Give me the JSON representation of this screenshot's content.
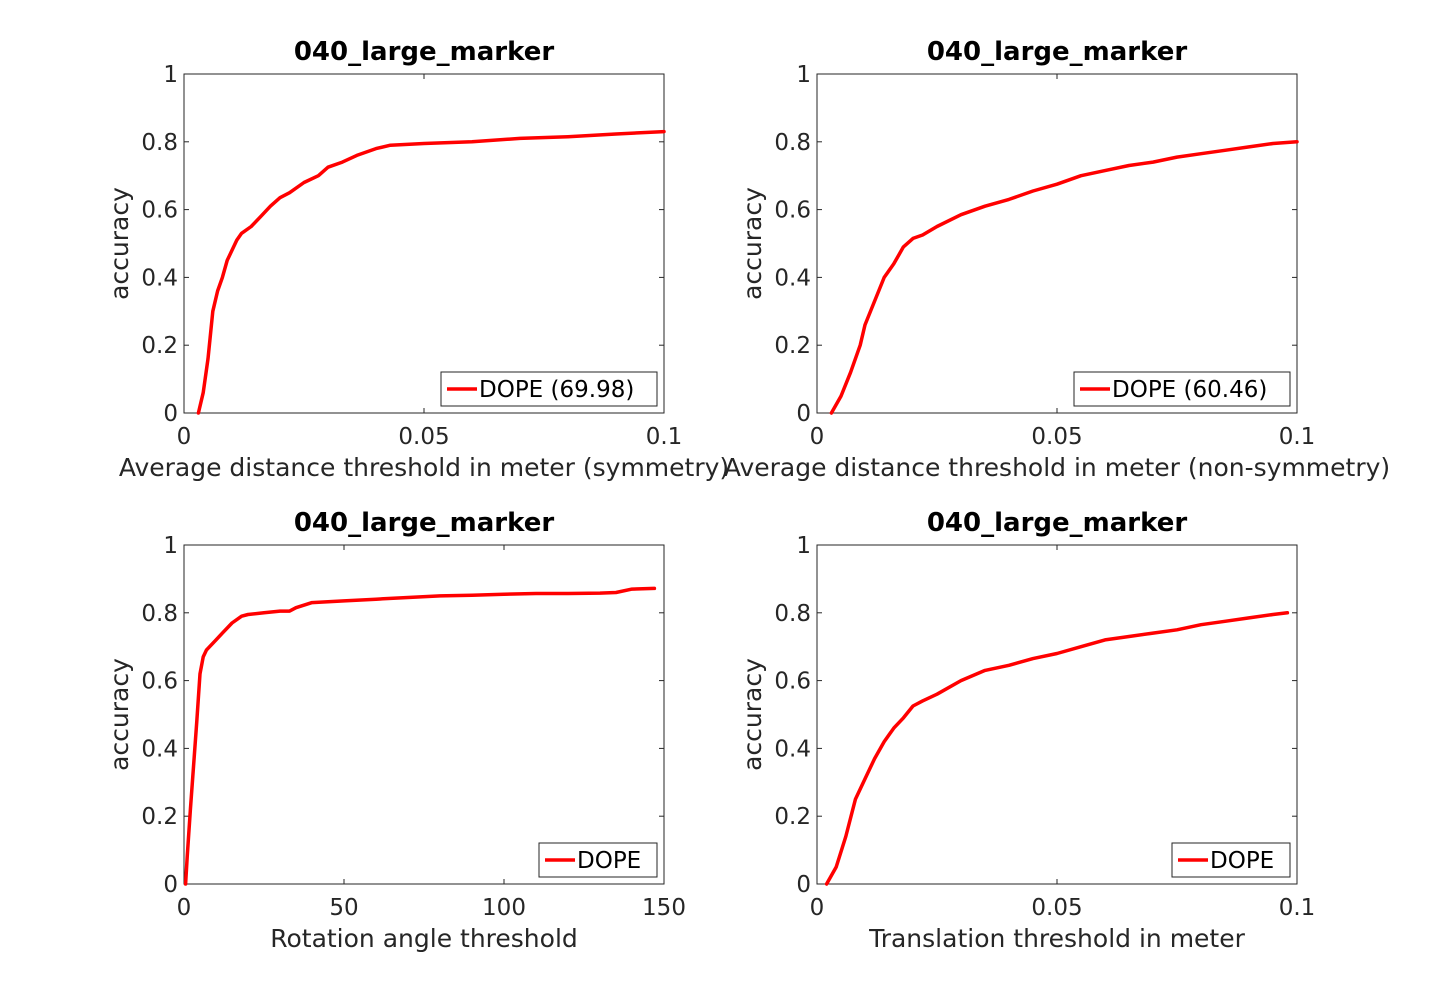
{
  "chart_data": [
    {
      "type": "line",
      "title": "040_large_marker",
      "xlabel": "Average distance threshold in meter (symmetry)",
      "ylabel": "accuracy",
      "xlim": [
        0,
        0.1
      ],
      "ylim": [
        0,
        1
      ],
      "xticks": [
        0,
        0.05,
        0.1
      ],
      "xtick_labels": [
        "0",
        "0.05",
        "0.1"
      ],
      "yticks": [
        0,
        0.2,
        0.4,
        0.6,
        0.8,
        1
      ],
      "ytick_labels": [
        "0",
        "0.2",
        "0.4",
        "0.6",
        "0.8",
        "1"
      ],
      "legend_position": "bottom-right",
      "grid": false,
      "series": [
        {
          "name": "DOPE (69.98)",
          "color": "#ff0000",
          "x": [
            0.003,
            0.004,
            0.005,
            0.006,
            0.007,
            0.008,
            0.009,
            0.01,
            0.011,
            0.012,
            0.014,
            0.016,
            0.018,
            0.02,
            0.022,
            0.025,
            0.028,
            0.03,
            0.033,
            0.036,
            0.04,
            0.043,
            0.05,
            0.06,
            0.07,
            0.08,
            0.09,
            0.1
          ],
          "y": [
            0.0,
            0.06,
            0.16,
            0.3,
            0.36,
            0.4,
            0.45,
            0.48,
            0.51,
            0.53,
            0.55,
            0.58,
            0.61,
            0.635,
            0.65,
            0.68,
            0.7,
            0.725,
            0.74,
            0.76,
            0.78,
            0.79,
            0.795,
            0.8,
            0.81,
            0.815,
            0.823,
            0.83
          ]
        }
      ]
    },
    {
      "type": "line",
      "title": "040_large_marker",
      "xlabel": "Average distance threshold in meter (non-symmetry)",
      "ylabel": "accuracy",
      "xlim": [
        0,
        0.1
      ],
      "ylim": [
        0,
        1
      ],
      "xticks": [
        0,
        0.05,
        0.1
      ],
      "xtick_labels": [
        "0",
        "0.05",
        "0.1"
      ],
      "yticks": [
        0,
        0.2,
        0.4,
        0.6,
        0.8,
        1
      ],
      "ytick_labels": [
        "0",
        "0.2",
        "0.4",
        "0.6",
        "0.8",
        "1"
      ],
      "legend_position": "bottom-right",
      "grid": false,
      "series": [
        {
          "name": "DOPE (60.46)",
          "color": "#ff0000",
          "x": [
            0.003,
            0.005,
            0.007,
            0.009,
            0.01,
            0.012,
            0.014,
            0.016,
            0.018,
            0.02,
            0.022,
            0.025,
            0.03,
            0.035,
            0.04,
            0.045,
            0.05,
            0.055,
            0.06,
            0.065,
            0.07,
            0.075,
            0.08,
            0.085,
            0.09,
            0.095,
            0.1
          ],
          "y": [
            0.0,
            0.05,
            0.12,
            0.2,
            0.26,
            0.33,
            0.4,
            0.44,
            0.49,
            0.515,
            0.525,
            0.55,
            0.585,
            0.61,
            0.63,
            0.655,
            0.675,
            0.7,
            0.715,
            0.73,
            0.74,
            0.755,
            0.765,
            0.775,
            0.785,
            0.795,
            0.8
          ]
        }
      ]
    },
    {
      "type": "line",
      "title": "040_large_marker",
      "xlabel": "Rotation angle threshold",
      "ylabel": "accuracy",
      "xlim": [
        0,
        150
      ],
      "ylim": [
        0,
        1
      ],
      "xticks": [
        0,
        50,
        100,
        150
      ],
      "xtick_labels": [
        "0",
        "50",
        "100",
        "150"
      ],
      "yticks": [
        0,
        0.2,
        0.4,
        0.6,
        0.8,
        1
      ],
      "ytick_labels": [
        "0",
        "0.2",
        "0.4",
        "0.6",
        "0.8",
        "1"
      ],
      "legend_position": "bottom-right",
      "grid": false,
      "series": [
        {
          "name": "DOPE",
          "color": "#ff0000",
          "x": [
            0.5,
            1,
            2,
            3,
            4,
            5,
            6,
            7,
            8,
            10,
            12,
            15,
            18,
            20,
            25,
            30,
            33,
            35,
            40,
            50,
            60,
            70,
            80,
            90,
            100,
            110,
            120,
            130,
            135,
            140,
            147
          ],
          "y": [
            0.0,
            0.08,
            0.22,
            0.35,
            0.48,
            0.62,
            0.67,
            0.69,
            0.7,
            0.72,
            0.74,
            0.77,
            0.79,
            0.795,
            0.8,
            0.805,
            0.805,
            0.815,
            0.83,
            0.835,
            0.84,
            0.845,
            0.85,
            0.852,
            0.855,
            0.857,
            0.857,
            0.858,
            0.86,
            0.87,
            0.872
          ]
        }
      ]
    },
    {
      "type": "line",
      "title": "040_large_marker",
      "xlabel": "Translation threshold in meter",
      "ylabel": "accuracy",
      "xlim": [
        0,
        0.1
      ],
      "ylim": [
        0,
        1
      ],
      "xticks": [
        0,
        0.05,
        0.1
      ],
      "xtick_labels": [
        "0",
        "0.05",
        "0.1"
      ],
      "yticks": [
        0,
        0.2,
        0.4,
        0.6,
        0.8,
        1
      ],
      "ytick_labels": [
        "0",
        "0.2",
        "0.4",
        "0.6",
        "0.8",
        "1"
      ],
      "legend_position": "bottom-right",
      "grid": false,
      "series": [
        {
          "name": "DOPE",
          "color": "#ff0000",
          "x": [
            0.002,
            0.004,
            0.006,
            0.008,
            0.01,
            0.012,
            0.014,
            0.016,
            0.018,
            0.02,
            0.022,
            0.025,
            0.03,
            0.035,
            0.04,
            0.045,
            0.05,
            0.055,
            0.06,
            0.065,
            0.07,
            0.075,
            0.08,
            0.085,
            0.09,
            0.095,
            0.098
          ],
          "y": [
            0.0,
            0.05,
            0.14,
            0.25,
            0.31,
            0.37,
            0.42,
            0.46,
            0.49,
            0.525,
            0.54,
            0.56,
            0.6,
            0.63,
            0.645,
            0.665,
            0.68,
            0.7,
            0.72,
            0.73,
            0.74,
            0.75,
            0.765,
            0.775,
            0.785,
            0.795,
            0.8
          ]
        }
      ]
    }
  ]
}
